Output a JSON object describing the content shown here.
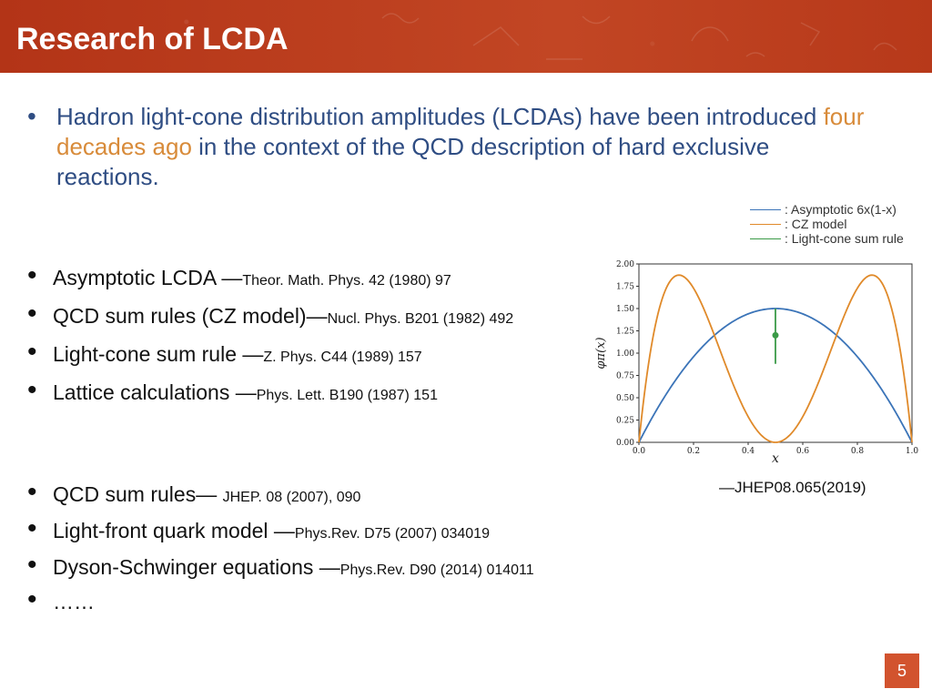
{
  "header": {
    "title": "Research of LCDA"
  },
  "intro": {
    "before": "Hadron light-cone distribution amplitudes (LCDAs) have been introduced ",
    "highlight": "four decades ago",
    "after": " in the context of the QCD description of hard exclusive reactions."
  },
  "list1": [
    {
      "text": "Asymptotic LCDA —",
      "ref": "Theor. Math. Phys. 42 (1980) 97"
    },
    {
      "text": "QCD sum rules (CZ model)—",
      "ref": "Nucl. Phys. B201 (1982) 492"
    },
    {
      "text": "Light-cone sum rule —",
      "ref": "Z. Phys. C44 (1989) 157"
    },
    {
      "text": "Lattice calculations —",
      "ref": "Phys. Lett. B190 (1987) 151"
    }
  ],
  "list2": [
    {
      "text": "QCD sum rules— ",
      "ref": "JHEP. 08 (2007), 090"
    },
    {
      "text": "Light-front quark model —",
      "ref": "Phys.Rev. D75 (2007) 034019"
    },
    {
      "text": "Dyson-Schwinger equations —",
      "ref": "Phys.Rev. D90 (2014) 014011"
    },
    {
      "text": "……",
      "ref": ""
    }
  ],
  "legend": [
    {
      "label": ": Asymptotic 6x(1-x)",
      "color": "#3b74b8"
    },
    {
      "label": ": CZ model",
      "color": "#e08a2a"
    },
    {
      "label": ": Light-cone sum rule",
      "color": "#3a9a47"
    }
  ],
  "chart_data": {
    "type": "line",
    "xlabel": "x",
    "ylabel": "φπ(x)",
    "xlim": [
      0,
      1
    ],
    "ylim": [
      0,
      2
    ],
    "x_ticks": [
      "0.0",
      "0.2",
      "0.4",
      "0.6",
      "0.8",
      "1.0"
    ],
    "y_ticks": [
      "0.00",
      "0.25",
      "0.50",
      "0.75",
      "1.00",
      "1.25",
      "1.50",
      "1.75",
      "2.00"
    ],
    "series": [
      {
        "name": "Asymptotic 6x(1-x)",
        "color": "#3b74b8",
        "x": [
          0,
          0.1,
          0.2,
          0.3,
          0.4,
          0.5,
          0.6,
          0.7,
          0.8,
          0.9,
          1.0
        ],
        "y": [
          0,
          0.54,
          0.96,
          1.26,
          1.44,
          1.5,
          1.44,
          1.26,
          0.96,
          0.54,
          0
        ]
      },
      {
        "name": "CZ model",
        "color": "#e08a2a",
        "x": [
          0,
          0.1,
          0.2,
          0.3,
          0.4,
          0.5,
          0.6,
          0.7,
          0.8,
          0.9,
          1.0
        ],
        "y": [
          0,
          1.51,
          1.81,
          1.01,
          0.29,
          0,
          0.29,
          1.01,
          1.81,
          1.51,
          0
        ]
      },
      {
        "name": "Light-cone sum rule",
        "color": "#3a9a47",
        "point": {
          "x": 0.5,
          "y": 1.2,
          "err": [
            0.88,
            1.5
          ]
        }
      }
    ]
  },
  "caption": "—JHEP08.065(2019)",
  "page": {
    "number": "5"
  }
}
